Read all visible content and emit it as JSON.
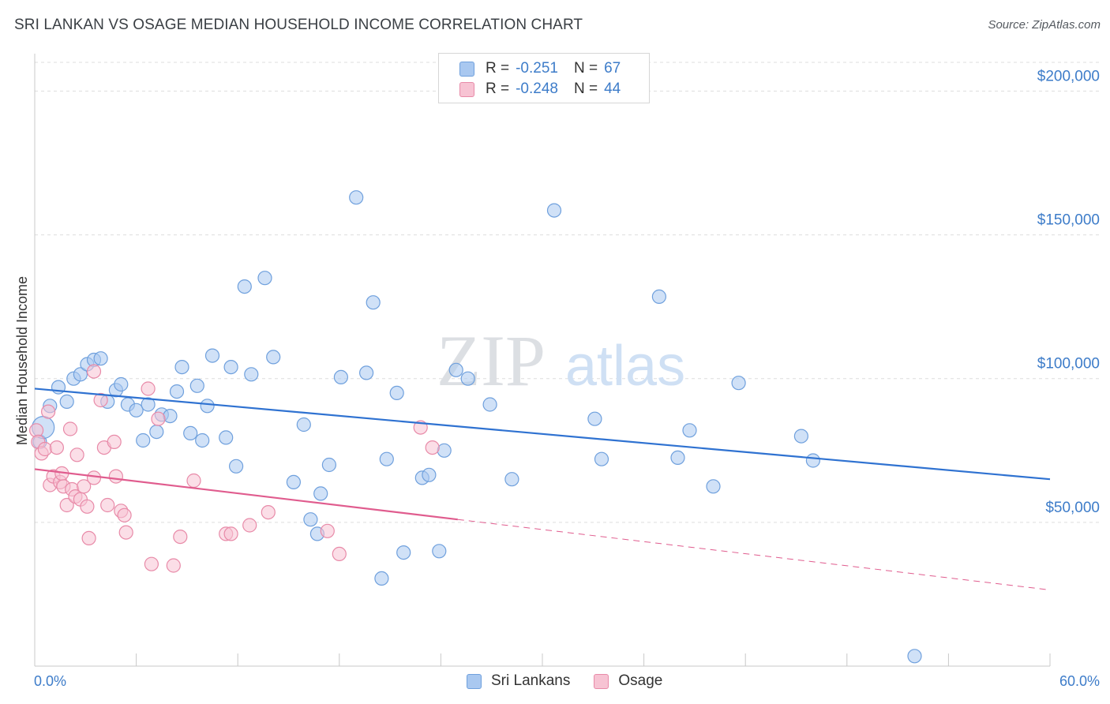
{
  "header": {
    "title": "SRI LANKAN VS OSAGE MEDIAN HOUSEHOLD INCOME CORRELATION CHART",
    "source": "Source: ZipAtlas.com"
  },
  "watermark": {
    "zip": "ZIP",
    "atlas": "atlas"
  },
  "legend": {
    "rows": [
      {
        "r_label": "R =",
        "r_value": "-0.251",
        "n_label": "N =",
        "n_value": "67",
        "color": "#a9c8f0",
        "border": "#6fa0dd"
      },
      {
        "r_label": "R =",
        "r_value": "-0.248",
        "n_label": "N =",
        "n_value": "44",
        "color": "#f7c3d3",
        "border": "#e88aa8"
      }
    ]
  },
  "bottom_legend": [
    {
      "label": "Sri Lankans",
      "color": "#a9c8f0",
      "border": "#6fa0dd"
    },
    {
      "label": "Osage",
      "color": "#f7c3d3",
      "border": "#e88aa8"
    }
  ],
  "chart_data": {
    "type": "scatter",
    "title": "SRI LANKAN VS OSAGE MEDIAN HOUSEHOLD INCOME CORRELATION CHART",
    "ylabel": "Median Household Income",
    "xlabel": "",
    "xlim": [
      0,
      60
    ],
    "ylim": [
      0,
      210000
    ],
    "x_tick_labels": {
      "min": "0.0%",
      "max": "60.0%"
    },
    "y_ticks": [
      {
        "value": 50000,
        "label": "$50,000"
      },
      {
        "value": 100000,
        "label": "$100,000"
      },
      {
        "value": 150000,
        "label": "$150,000"
      },
      {
        "value": 200000,
        "label": "$200,000"
      }
    ],
    "grid": "horizontal-dashed",
    "series": [
      {
        "name": "Sri Lankans",
        "color": "#a9c8f0",
        "stroke": "#6fa0dd",
        "trend": {
          "x0": 0,
          "y0": 96500,
          "x1": 60,
          "y1": 65000,
          "color": "#2f72d1"
        },
        "points": [
          [
            0.3,
            78000
          ],
          [
            0.5,
            83000
          ],
          [
            0.9,
            90500
          ],
          [
            1.4,
            97000
          ],
          [
            1.9,
            92000
          ],
          [
            2.3,
            100000
          ],
          [
            2.7,
            101500
          ],
          [
            3.1,
            105000
          ],
          [
            3.5,
            106500
          ],
          [
            3.9,
            107000
          ],
          [
            4.3,
            92000
          ],
          [
            4.8,
            96000
          ],
          [
            5.1,
            98000
          ],
          [
            5.5,
            91000
          ],
          [
            6.0,
            89000
          ],
          [
            6.4,
            78500
          ],
          [
            6.7,
            91000
          ],
          [
            7.2,
            81500
          ],
          [
            7.5,
            87500
          ],
          [
            8.0,
            87000
          ],
          [
            8.4,
            95500
          ],
          [
            8.7,
            104000
          ],
          [
            9.2,
            81000
          ],
          [
            9.6,
            97500
          ],
          [
            9.9,
            78500
          ],
          [
            10.2,
            90500
          ],
          [
            10.5,
            108000
          ],
          [
            11.3,
            79500
          ],
          [
            11.6,
            104000
          ],
          [
            11.9,
            69500
          ],
          [
            12.4,
            132000
          ],
          [
            12.8,
            101500
          ],
          [
            13.6,
            135000
          ],
          [
            14.1,
            107500
          ],
          [
            15.3,
            64000
          ],
          [
            15.9,
            84000
          ],
          [
            16.3,
            51000
          ],
          [
            16.7,
            46000
          ],
          [
            16.9,
            60000
          ],
          [
            17.4,
            70000
          ],
          [
            18.1,
            100500
          ],
          [
            19.0,
            163000
          ],
          [
            19.6,
            102000
          ],
          [
            20.0,
            126500
          ],
          [
            20.5,
            30500
          ],
          [
            20.8,
            72000
          ],
          [
            21.4,
            95000
          ],
          [
            21.8,
            39500
          ],
          [
            22.9,
            65500
          ],
          [
            23.3,
            66500
          ],
          [
            23.9,
            40000
          ],
          [
            24.2,
            75000
          ],
          [
            24.9,
            103000
          ],
          [
            25.6,
            100000
          ],
          [
            26.9,
            91000
          ],
          [
            28.2,
            65000
          ],
          [
            30.7,
            158500
          ],
          [
            33.1,
            86000
          ],
          [
            33.5,
            72000
          ],
          [
            36.9,
            128500
          ],
          [
            38.0,
            72500
          ],
          [
            38.7,
            82000
          ],
          [
            40.1,
            62500
          ],
          [
            41.6,
            98500
          ],
          [
            45.3,
            80000
          ],
          [
            46.0,
            71500
          ],
          [
            52.0,
            3500
          ]
        ]
      },
      {
        "name": "Osage",
        "color": "#f7c3d3",
        "stroke": "#e88aa8",
        "trend": {
          "x0": 0,
          "y0": 68500,
          "x1": 25,
          "y1": 51000,
          "color": "#e05c8e",
          "dash_x1": 60,
          "dash_y1": 26500
        },
        "points": [
          [
            0.1,
            82000
          ],
          [
            0.2,
            78000
          ],
          [
            0.4,
            74000
          ],
          [
            0.6,
            75500
          ],
          [
            0.8,
            88500
          ],
          [
            0.9,
            63000
          ],
          [
            1.1,
            66000
          ],
          [
            1.3,
            76000
          ],
          [
            1.5,
            64000
          ],
          [
            1.6,
            67000
          ],
          [
            1.7,
            62500
          ],
          [
            1.9,
            56000
          ],
          [
            2.1,
            82500
          ],
          [
            2.2,
            61500
          ],
          [
            2.4,
            59000
          ],
          [
            2.5,
            73500
          ],
          [
            2.7,
            58000
          ],
          [
            2.9,
            62500
          ],
          [
            3.1,
            55500
          ],
          [
            3.2,
            44500
          ],
          [
            3.5,
            65500
          ],
          [
            3.5,
            102500
          ],
          [
            3.9,
            92500
          ],
          [
            4.1,
            76000
          ],
          [
            4.3,
            56000
          ],
          [
            4.7,
            78000
          ],
          [
            4.8,
            66000
          ],
          [
            5.1,
            54000
          ],
          [
            5.3,
            52500
          ],
          [
            5.4,
            46500
          ],
          [
            6.7,
            96500
          ],
          [
            6.9,
            35500
          ],
          [
            7.3,
            86000
          ],
          [
            8.2,
            35000
          ],
          [
            8.6,
            45000
          ],
          [
            9.4,
            64500
          ],
          [
            11.3,
            46000
          ],
          [
            11.6,
            46000
          ],
          [
            12.7,
            49000
          ],
          [
            13.8,
            53500
          ],
          [
            17.3,
            47000
          ],
          [
            18.0,
            39000
          ],
          [
            22.8,
            83000
          ],
          [
            23.5,
            76000
          ]
        ]
      }
    ]
  }
}
